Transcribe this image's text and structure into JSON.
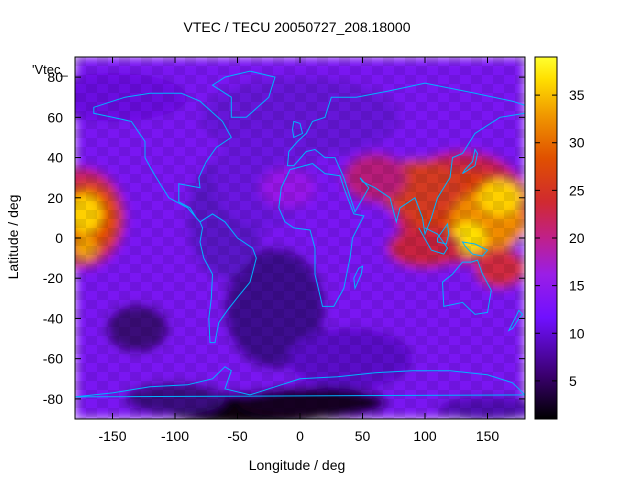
{
  "chart_data": {
    "type": "heatmap",
    "title": "VTEC / TECU 20050727_208.18000",
    "xlabel": "Longitude / deg",
    "ylabel": "Latitude / deg",
    "legend_key": "'Vtec_",
    "xlim": [
      -180,
      180
    ],
    "ylim": [
      -90,
      90
    ],
    "x_ticks": [
      -150,
      -100,
      -50,
      0,
      50,
      100,
      150
    ],
    "y_ticks": [
      -80,
      -60,
      -40,
      -20,
      0,
      20,
      40,
      60,
      80
    ],
    "colorbar": {
      "range": [
        1,
        39
      ],
      "ticks": [
        5,
        10,
        15,
        20,
        25,
        30,
        35
      ]
    },
    "grid": false,
    "coastlines": true,
    "coastline_color": "#00b4ff",
    "colormap": "black-purple-red-yellow",
    "features": [
      {
        "name": "equatorial-anomaly-asia",
        "lon_range": [
          70,
          180
        ],
        "lat_range": [
          -20,
          40
        ],
        "peak_vtec": 37
      },
      {
        "name": "equatorial-anomaly-pacific",
        "lon_range": [
          -180,
          -130
        ],
        "lat_range": [
          -20,
          30
        ],
        "peak_vtec": 37
      },
      {
        "name": "antarctic-minimum",
        "lon_range": [
          -80,
          40
        ],
        "lat_range": [
          -90,
          -75
        ],
        "min_vtec": 1
      }
    ]
  }
}
